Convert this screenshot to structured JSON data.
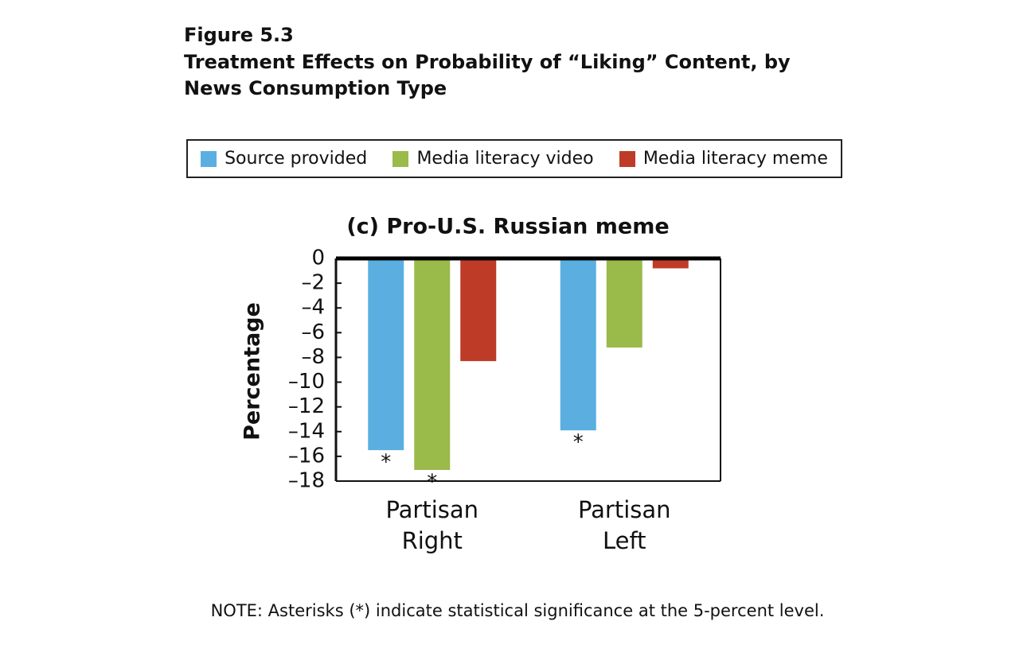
{
  "chart_data": {
    "type": "bar",
    "figure_number": "Figure 5.3",
    "title": "Treatment Effects on Probability of “Liking” Content, by News Consumption Type",
    "subtitle": "(c) Pro-U.S. Russian meme",
    "y_label": "Percentage",
    "note": "NOTE: Asterisks (*) indicate statistical significance at the 5-percent level.",
    "categories": [
      "Partisan Right",
      "Partisan Left"
    ],
    "series": [
      {
        "name": "Source provided",
        "color": "#5aafe0",
        "values": [
          -15.5,
          -13.9
        ],
        "significance": [
          "*",
          "*"
        ]
      },
      {
        "name": "Media literacy video",
        "color": "#9aba4a",
        "values": [
          -17.1,
          -7.2
        ],
        "significance": [
          "*",
          null
        ]
      },
      {
        "name": "Media literacy meme",
        "color": "#be3b28",
        "values": [
          -8.3,
          -0.8
        ],
        "significance": [
          null,
          null
        ]
      }
    ],
    "ylim": [
      0,
      -18
    ],
    "yticks": [
      0,
      {
        "value": -2,
        "label": "–2"
      },
      {
        "value": -4,
        "label": "–4"
      },
      {
        "value": -6,
        "label": "–6"
      },
      {
        "value": -8,
        "label": "–8"
      },
      {
        "value": -10,
        "label": "–10"
      },
      {
        "value": -12,
        "label": "–12"
      },
      {
        "value": -14,
        "label": "–14"
      },
      {
        "value": -16,
        "label": "–16"
      },
      {
        "value": -18,
        "label": "–18"
      }
    ],
    "legend": "top"
  }
}
